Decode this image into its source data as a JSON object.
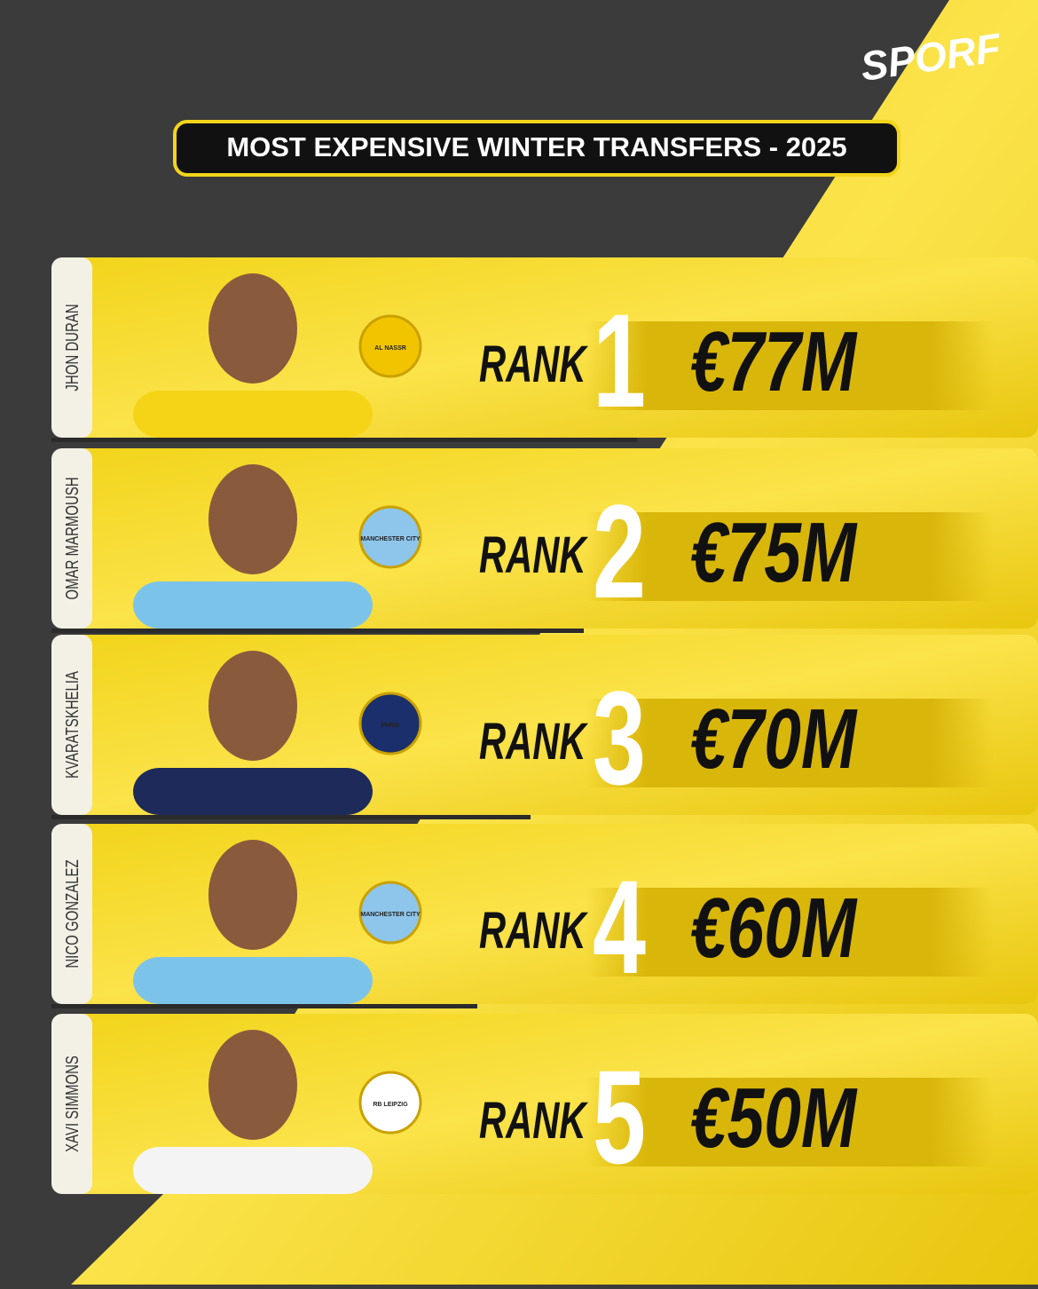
{
  "brand": "SPORF",
  "title": "MOST EXPENSIVE WINTER TRANSFERS - 2025",
  "rows": [
    {
      "name": "JHON DURAN",
      "club": "AL NASSR",
      "rank_label": "RANK",
      "rank": 1,
      "fee": "€77M"
    },
    {
      "name": "OMAR MARMOUSH",
      "club": "MANCHESTER CITY",
      "rank_label": "RANK",
      "rank": 2,
      "fee": "€75M"
    },
    {
      "name": "KVARATSKHELIA",
      "club": "PARIS",
      "rank_label": "RANK",
      "rank": 3,
      "fee": "€70M"
    },
    {
      "name": "NICO GONZALEZ",
      "club": "MANCHESTER CITY",
      "rank_label": "RANK",
      "rank": 4,
      "fee": "€60M"
    },
    {
      "name": "XAVI SIMMONS",
      "club": "RB LEIPZIG",
      "rank_label": "RANK",
      "rank": 5,
      "fee": "€50M"
    }
  ]
}
